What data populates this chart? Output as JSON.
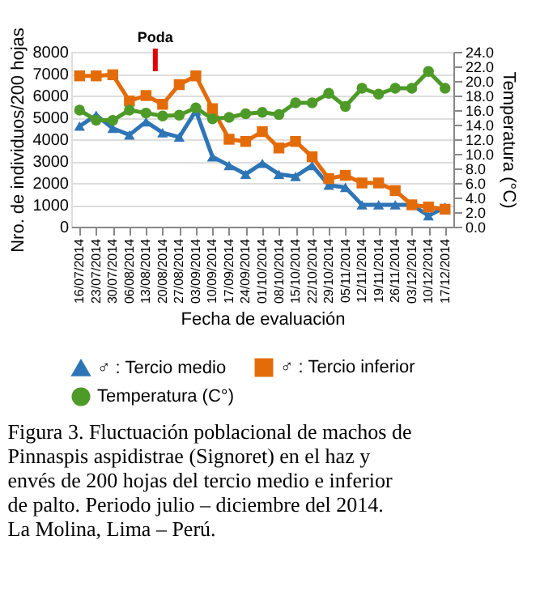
{
  "chart_data": {
    "type": "line",
    "xlabel": "Fecha de evaluación",
    "ylabel": "Nro. de individuos/200 hojas",
    "y2label": "Temperatura (°C)",
    "categories": [
      "16/07/2014",
      "23/07/2014",
      "30/07/2014",
      "06/08/2014",
      "13/08/2014",
      "20/08/2014",
      "27/08/2014",
      "03/09/2014",
      "10/09/2014",
      "17/09/2014",
      "24/09/2014",
      "01/10/2014",
      "08/10/2014",
      "15/10/2014",
      "22/10/2014",
      "29/10/2014",
      "05/11/2014",
      "12/11/2014",
      "19/11/2014",
      "26/11/2014",
      "03/12/2014",
      "10/12/2014",
      "17/12/2014"
    ],
    "series": [
      {
        "name": "♂ : Tercio medio",
        "color": "#2e75b6",
        "marker": "triangle",
        "values": [
          4600,
          5100,
          4500,
          4200,
          4800,
          4300,
          4100,
          5300,
          3200,
          2800,
          2400,
          2900,
          2400,
          2300,
          2800,
          1900,
          1800,
          1000,
          1000,
          1000,
          1000,
          500,
          900
        ]
      },
      {
        "name": "♂ : Tercio inferior",
        "color": "#e36c09",
        "marker": "square",
        "values": [
          6900,
          6900,
          6950,
          5750,
          6000,
          5600,
          6500,
          6900,
          5400,
          4000,
          3900,
          4350,
          3600,
          3900,
          3200,
          2200,
          2350,
          2000,
          2000,
          1650,
          1000,
          900,
          800
        ]
      },
      {
        "name": "Temperatura (C°)",
        "color": "#4e9a28",
        "marker": "circle",
        "axis": "y2",
        "values": [
          16.0,
          14.6,
          14.6,
          16.0,
          15.6,
          15.2,
          15.3,
          16.3,
          14.8,
          15.0,
          15.5,
          15.7,
          15.4,
          17.0,
          17.0,
          18.3,
          16.5,
          19.0,
          18.2,
          19.0,
          19.0,
          21.3,
          19.0
        ]
      }
    ],
    "ylim": [
      0,
      8000
    ],
    "yticks": [
      0,
      1000,
      2000,
      3000,
      4000,
      5000,
      6000,
      7000,
      8000
    ],
    "y2lim": [
      0,
      24
    ],
    "y2ticks": [
      {
        "value": 0,
        "label": "0.0"
      },
      {
        "value": 2,
        "label": "2.0"
      },
      {
        "value": 4,
        "label": "4.0"
      },
      {
        "value": 6,
        "label": "6.0"
      },
      {
        "value": 8,
        "label": "8.0"
      },
      {
        "value": 10,
        "label": "10.0"
      },
      {
        "value": 12,
        "label": "12.0"
      },
      {
        "value": 14,
        "label": "14.0"
      },
      {
        "value": 16,
        "label": "16.0"
      },
      {
        "value": 18,
        "label": "18.0"
      },
      {
        "value": 20,
        "label": "20.0"
      },
      {
        "value": 22,
        "label": "22.0"
      },
      {
        "value": 24,
        "label": "24.0"
      }
    ],
    "grid": "y",
    "legend": "bottom",
    "line_style": "solid",
    "annotations": [
      "Poda",
      "Figura 3. Fluctuación poblacional de machos de Pinnaspis aspidistrae (Signoret) en el haz y envés de 200 hojas del tercio medio e inferior de palto. Periodo julio – diciembre del 2014. La Molina, Lima – Perú."
    ]
  }
}
